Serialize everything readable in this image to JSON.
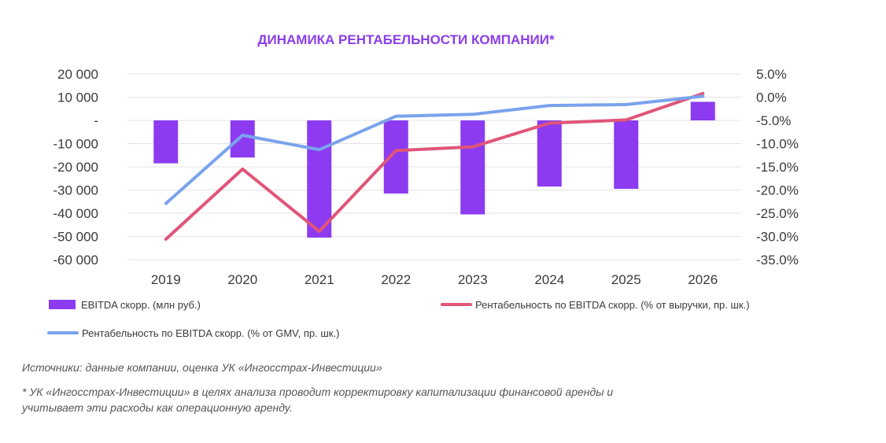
{
  "chart_data": {
    "type": "bar",
    "title": "ДИНАМИКА РЕНТАБЕЛЬНОСТИ КОМПАНИИ*",
    "categories": [
      "2019",
      "2020",
      "2021",
      "2022",
      "2023",
      "2024",
      "2025",
      "2026"
    ],
    "y_left_ticks": [
      "20 000",
      "10 000",
      "-",
      "-10 000",
      "-20 000",
      "-30 000",
      "-40 000",
      "-50 000",
      "-60 000"
    ],
    "y_right_ticks": [
      "5.0%",
      "0.0%",
      "-5.0%",
      "-10.0%",
      "-15.0%",
      "-20.0%",
      "-25.0%",
      "-30.0%",
      "-35.0%"
    ],
    "ylim_left": [
      -60000,
      20000
    ],
    "ylim_right": [
      -35,
      5
    ],
    "grid": true,
    "legend_position": "bottom",
    "series": [
      {
        "name": "EBITDA скорр. (млн руб.)",
        "type": "bar",
        "axis": "left",
        "color": "#8c3bf0",
        "values": [
          -18500,
          -16000,
          -50500,
          -31500,
          -40500,
          -28500,
          -29500,
          8000
        ]
      },
      {
        "name": "Рентабельность по EBITDA скорр. (% от выручки, пр. шк.)",
        "type": "line",
        "axis": "right",
        "color": "#e05578",
        "values": [
          -30.6,
          -15.5,
          -28.9,
          -11.5,
          -10.7,
          -5.6,
          -4.9,
          0.8
        ]
      },
      {
        "name": "Рентабельность по EBITDA скорр. (% от GMV, пр. шк.)",
        "type": "line",
        "axis": "right",
        "color": "#7aa3ec",
        "values": [
          -22.9,
          -8.2,
          -11.3,
          -4.1,
          -3.7,
          -1.8,
          -1.6,
          0.2
        ]
      }
    ]
  },
  "notes": {
    "source": "Источники: данные компании, оценка УК «Ингосстрах-Инвестиции»",
    "footnote_line1": "* УК «Ингосстрах-Инвестиции» в целях анализа проводит корректировку капитализации финансовой аренды и",
    "footnote_line2": "учитывает эти расходы как операционную аренду."
  }
}
